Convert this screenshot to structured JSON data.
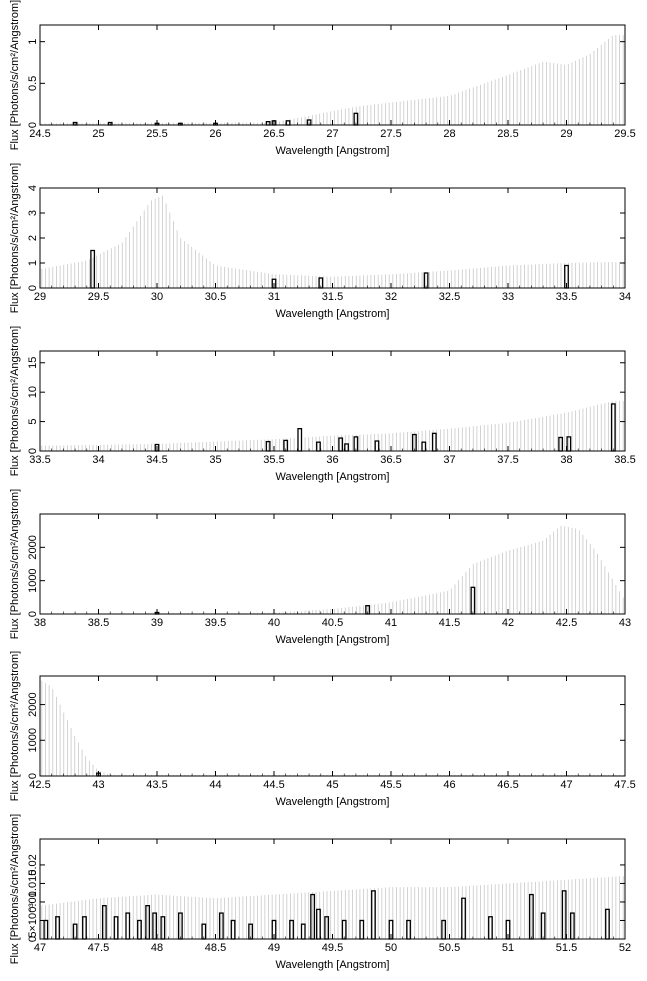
{
  "chart_data": [
    {
      "type": "bar",
      "xlabel": "Wavelength [Angstrom]",
      "ylabel": "Flux [Photons/s/cm²/Angstrom]",
      "xlim": [
        24.5,
        29.5
      ],
      "ylim": [
        0,
        1.2
      ],
      "xticks": [
        "24.5",
        "25",
        "25.5",
        "26",
        "26.5",
        "27",
        "27.5",
        "28",
        "28.5",
        "29",
        "29.5"
      ],
      "yticks": [
        "0",
        "0.5",
        "1"
      ],
      "grid": false,
      "error_envelope": [
        [
          24.5,
          0.02
        ],
        [
          26.5,
          0.03
        ],
        [
          27.2,
          0.22
        ],
        [
          27.5,
          0.27
        ],
        [
          28.0,
          0.35
        ],
        [
          28.5,
          0.6
        ],
        [
          28.8,
          0.76
        ],
        [
          29.0,
          0.72
        ],
        [
          29.2,
          0.85
        ],
        [
          29.4,
          1.08
        ]
      ],
      "bars": [
        {
          "x": 24.8,
          "y": 0.03
        },
        {
          "x": 25.1,
          "y": 0.03
        },
        {
          "x": 25.5,
          "y": 0.02
        },
        {
          "x": 25.7,
          "y": 0.02
        },
        {
          "x": 26.0,
          "y": 0.02
        },
        {
          "x": 26.45,
          "y": 0.04
        },
        {
          "x": 26.5,
          "y": 0.05
        },
        {
          "x": 26.62,
          "y": 0.05
        },
        {
          "x": 26.8,
          "y": 0.06
        },
        {
          "x": 27.2,
          "y": 0.14
        }
      ]
    },
    {
      "type": "bar",
      "xlabel": "Wavelength [Angstrom]",
      "ylabel": "Flux [Photons/s/cm²/Angstrom]",
      "xlim": [
        29,
        34
      ],
      "ylim": [
        0,
        4
      ],
      "xticks": [
        "29",
        "29.5",
        "30",
        "30.5",
        "31",
        "31.5",
        "32",
        "32.5",
        "33",
        "33.5",
        "34"
      ],
      "yticks": [
        "0",
        "1",
        "2",
        "3",
        "4"
      ],
      "grid": false,
      "error_envelope": [
        [
          29.0,
          0.75
        ],
        [
          29.4,
          1.1
        ],
        [
          29.7,
          1.8
        ],
        [
          29.95,
          3.5
        ],
        [
          30.05,
          3.7
        ],
        [
          30.2,
          2.0
        ],
        [
          30.5,
          0.9
        ],
        [
          31.0,
          0.55
        ],
        [
          31.5,
          0.45
        ],
        [
          32.0,
          0.55
        ],
        [
          32.5,
          0.7
        ],
        [
          33.0,
          0.9
        ],
        [
          33.5,
          1.0
        ],
        [
          34.0,
          1.05
        ]
      ],
      "bars": [
        {
          "x": 29.45,
          "y": 1.5
        },
        {
          "x": 31.0,
          "y": 0.35
        },
        {
          "x": 31.4,
          "y": 0.4
        },
        {
          "x": 32.3,
          "y": 0.6
        },
        {
          "x": 33.5,
          "y": 0.9
        }
      ]
    },
    {
      "type": "bar",
      "xlabel": "Wavelength [Angstrom]",
      "ylabel": "Flux [Photons/s/cm²/Angstrom]",
      "xlim": [
        33.5,
        38.5
      ],
      "ylim": [
        0,
        17
      ],
      "xticks": [
        "33.5",
        "34",
        "34.5",
        "35",
        "35.5",
        "36",
        "36.5",
        "37",
        "37.5",
        "38",
        "38.5"
      ],
      "yticks": [
        "0",
        "5",
        "10",
        "15"
      ],
      "grid": false,
      "error_envelope": [
        [
          33.5,
          0.9
        ],
        [
          34.5,
          1.2
        ],
        [
          35.5,
          2.0
        ],
        [
          36.0,
          2.6
        ],
        [
          36.5,
          3.0
        ],
        [
          37.0,
          3.8
        ],
        [
          37.5,
          4.8
        ],
        [
          38.0,
          6.5
        ],
        [
          38.4,
          8.5
        ]
      ],
      "bars": [
        {
          "x": 34.5,
          "y": 1.1
        },
        {
          "x": 35.45,
          "y": 1.6
        },
        {
          "x": 35.6,
          "y": 1.8
        },
        {
          "x": 35.72,
          "y": 3.8
        },
        {
          "x": 35.88,
          "y": 1.5
        },
        {
          "x": 36.07,
          "y": 2.2
        },
        {
          "x": 36.12,
          "y": 1.2
        },
        {
          "x": 36.2,
          "y": 2.4
        },
        {
          "x": 36.38,
          "y": 1.7
        },
        {
          "x": 36.7,
          "y": 2.8
        },
        {
          "x": 36.78,
          "y": 1.5
        },
        {
          "x": 36.87,
          "y": 3.0
        },
        {
          "x": 37.95,
          "y": 2.3
        },
        {
          "x": 38.02,
          "y": 2.4
        },
        {
          "x": 38.4,
          "y": 8.0
        }
      ]
    },
    {
      "type": "bar",
      "xlabel": "Wavelength [Angstrom]",
      "ylabel": "Flux [Photons/s/cm²/Angstrom]",
      "xlim": [
        38,
        43
      ],
      "ylim": [
        0,
        3000
      ],
      "xticks": [
        "38",
        "38.5",
        "39",
        "39.5",
        "40",
        "40.5",
        "41",
        "41.5",
        "42",
        "42.5",
        "43"
      ],
      "yticks": [
        "0",
        "1000",
        "2000"
      ],
      "grid": false,
      "error_envelope": [
        [
          38.0,
          10
        ],
        [
          39.5,
          20
        ],
        [
          40.0,
          40
        ],
        [
          40.5,
          150
        ],
        [
          41.0,
          350
        ],
        [
          41.5,
          700
        ],
        [
          41.7,
          1500
        ],
        [
          42.0,
          1900
        ],
        [
          42.3,
          2200
        ],
        [
          42.45,
          2650
        ],
        [
          42.6,
          2550
        ],
        [
          42.75,
          1900
        ],
        [
          42.9,
          1000
        ],
        [
          43.0,
          400
        ]
      ],
      "bars": [
        {
          "x": 39.0,
          "y": 15
        },
        {
          "x": 40.8,
          "y": 250
        },
        {
          "x": 41.7,
          "y": 800
        }
      ]
    },
    {
      "type": "bar",
      "xlabel": "Wavelength [Angstrom]",
      "ylabel": "Flux [Photons/s/cm²/Angstrom]",
      "xlim": [
        42.5,
        47.5
      ],
      "ylim": [
        0,
        2800
      ],
      "xticks": [
        "42.5",
        "43",
        "43.5",
        "44",
        "44.5",
        "45",
        "45.5",
        "46",
        "46.5",
        "47",
        "47.5"
      ],
      "yticks": [
        "0",
        "1000",
        "2000"
      ],
      "grid": false,
      "error_envelope": [
        [
          42.5,
          2700
        ],
        [
          42.6,
          2500
        ],
        [
          42.7,
          1800
        ],
        [
          42.8,
          1100
        ],
        [
          42.9,
          500
        ],
        [
          43.0,
          150
        ],
        [
          43.1,
          30
        ]
      ],
      "bars": [
        {
          "x": 43.0,
          "y": 80
        }
      ]
    },
    {
      "type": "bar",
      "xlabel": "Wavelength [Angstrom]",
      "ylabel": "Flux [Photons/s/cm²/Angstrom]",
      "xlim": [
        47,
        52
      ],
      "ylim": [
        0,
        0.027
      ],
      "xticks": [
        "47",
        "47.5",
        "48",
        "48.5",
        "49",
        "49.5",
        "50",
        "50.5",
        "51",
        "51.5",
        "52"
      ],
      "yticks": [
        "0",
        "5×10⁻³",
        "0.01",
        "0.015",
        "0.02"
      ],
      "grid": false,
      "error_envelope": [
        [
          47.0,
          0.009
        ],
        [
          47.5,
          0.011
        ],
        [
          48.0,
          0.012
        ],
        [
          48.5,
          0.011
        ],
        [
          49.0,
          0.012
        ],
        [
          49.5,
          0.013
        ],
        [
          50.0,
          0.014
        ],
        [
          50.5,
          0.014
        ],
        [
          51.0,
          0.015
        ],
        [
          51.5,
          0.016
        ],
        [
          52.0,
          0.017
        ]
      ],
      "bars": [
        {
          "x": 47.05,
          "y": 0.005
        },
        {
          "x": 47.15,
          "y": 0.006
        },
        {
          "x": 47.3,
          "y": 0.004
        },
        {
          "x": 47.38,
          "y": 0.006
        },
        {
          "x": 47.55,
          "y": 0.009
        },
        {
          "x": 47.65,
          "y": 0.006
        },
        {
          "x": 47.75,
          "y": 0.007
        },
        {
          "x": 47.85,
          "y": 0.005
        },
        {
          "x": 47.92,
          "y": 0.009
        },
        {
          "x": 47.98,
          "y": 0.007
        },
        {
          "x": 48.05,
          "y": 0.006
        },
        {
          "x": 48.2,
          "y": 0.007
        },
        {
          "x": 48.4,
          "y": 0.004
        },
        {
          "x": 48.55,
          "y": 0.007
        },
        {
          "x": 48.65,
          "y": 0.005
        },
        {
          "x": 48.8,
          "y": 0.004
        },
        {
          "x": 49.0,
          "y": 0.005
        },
        {
          "x": 49.15,
          "y": 0.005
        },
        {
          "x": 49.25,
          "y": 0.004
        },
        {
          "x": 49.33,
          "y": 0.012
        },
        {
          "x": 49.38,
          "y": 0.008
        },
        {
          "x": 49.45,
          "y": 0.006
        },
        {
          "x": 49.6,
          "y": 0.005
        },
        {
          "x": 49.75,
          "y": 0.005
        },
        {
          "x": 49.85,
          "y": 0.013
        },
        {
          "x": 50.0,
          "y": 0.005
        },
        {
          "x": 50.15,
          "y": 0.005
        },
        {
          "x": 50.45,
          "y": 0.005
        },
        {
          "x": 50.62,
          "y": 0.011
        },
        {
          "x": 50.85,
          "y": 0.006
        },
        {
          "x": 51.0,
          "y": 0.005
        },
        {
          "x": 51.2,
          "y": 0.012
        },
        {
          "x": 51.3,
          "y": 0.007
        },
        {
          "x": 51.48,
          "y": 0.013
        },
        {
          "x": 51.55,
          "y": 0.007
        },
        {
          "x": 51.85,
          "y": 0.008
        }
      ]
    }
  ]
}
